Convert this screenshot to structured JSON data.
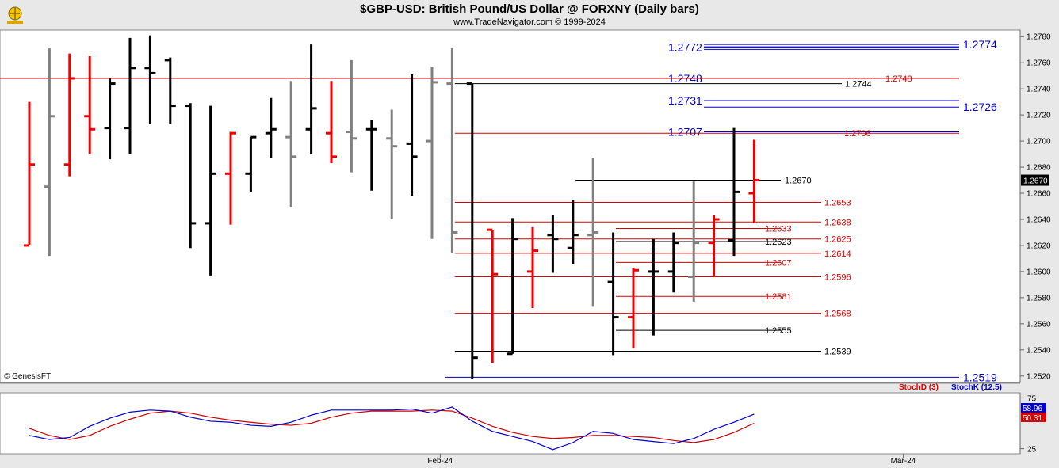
{
  "header": {
    "title": "$GBP-USD:  British Pound/US Dollar @ FORXNY  (Daily bars)",
    "subtitle": "www.TradeNavigator.com © 1999-2024"
  },
  "colors": {
    "up": "#000000",
    "down": "#ee0000",
    "neutral": "#808080",
    "blue_line": "#0000cc",
    "red_line": "#dd0000",
    "black_line": "#000000"
  },
  "copyright": "© GenesisFT",
  "chart_data": [
    {
      "type": "bar",
      "subtype": "ohlc",
      "ylim": [
        1.2515,
        1.2785
      ],
      "yticks": [
        "1.2780",
        "1.2760",
        "1.2740",
        "1.2720",
        "1.2700",
        "1.2680",
        "1.2660",
        "1.2640",
        "1.2620",
        "1.2600",
        "1.2580",
        "1.2560",
        "1.2540",
        "1.2520"
      ],
      "last_price": "1.2670",
      "x_labels": [
        {
          "label": "Feb-24",
          "index": 21
        },
        {
          "label": "Mar-24",
          "index": 44
        }
      ],
      "bars": [
        {
          "o": 1.262,
          "h": 1.273,
          "l": 1.262,
          "c": 1.2682,
          "color": "red"
        },
        {
          "o": 1.2665,
          "h": 1.2771,
          "l": 1.2612,
          "c": 1.2719,
          "color": "gray"
        },
        {
          "o": 1.2682,
          "h": 1.2767,
          "l": 1.2673,
          "c": 1.2748,
          "color": "red"
        },
        {
          "o": 1.2719,
          "h": 1.2765,
          "l": 1.269,
          "c": 1.2709,
          "color": "red"
        },
        {
          "o": 1.271,
          "h": 1.2748,
          "l": 1.2686,
          "c": 1.2744,
          "color": "black"
        },
        {
          "o": 1.271,
          "h": 1.2779,
          "l": 1.269,
          "c": 1.2756,
          "color": "black"
        },
        {
          "o": 1.2756,
          "h": 1.2781,
          "l": 1.2713,
          "c": 1.2752,
          "color": "black"
        },
        {
          "o": 1.2762,
          "h": 1.2764,
          "l": 1.2713,
          "c": 1.2727,
          "color": "black"
        },
        {
          "o": 1.2727,
          "h": 1.2729,
          "l": 1.2618,
          "c": 1.2637,
          "color": "black"
        },
        {
          "o": 1.2637,
          "h": 1.2727,
          "l": 1.2597,
          "c": 1.2675,
          "color": "black"
        },
        {
          "o": 1.2675,
          "h": 1.2707,
          "l": 1.2636,
          "c": 1.2706,
          "color": "red"
        },
        {
          "o": 1.2675,
          "h": 1.2703,
          "l": 1.2661,
          "c": 1.2703,
          "color": "black"
        },
        {
          "o": 1.2706,
          "h": 1.2733,
          "l": 1.2687,
          "c": 1.2709,
          "color": "black"
        },
        {
          "o": 1.2703,
          "h": 1.2746,
          "l": 1.2649,
          "c": 1.2688,
          "color": "gray"
        },
        {
          "o": 1.2709,
          "h": 1.2774,
          "l": 1.269,
          "c": 1.2725,
          "color": "black"
        },
        {
          "o": 1.2706,
          "h": 1.2746,
          "l": 1.2683,
          "c": 1.2688,
          "color": "red"
        },
        {
          "o": 1.2707,
          "h": 1.2762,
          "l": 1.2676,
          "c": 1.2702,
          "color": "gray"
        },
        {
          "o": 1.2709,
          "h": 1.2716,
          "l": 1.2662,
          "c": 1.2709,
          "color": "black"
        },
        {
          "o": 1.2702,
          "h": 1.2724,
          "l": 1.264,
          "c": 1.2696,
          "color": "gray"
        },
        {
          "o": 1.2698,
          "h": 1.2751,
          "l": 1.2658,
          "c": 1.2688,
          "color": "black"
        },
        {
          "o": 1.27,
          "h": 1.2757,
          "l": 1.2625,
          "c": 1.2745,
          "color": "gray"
        },
        {
          "o": 1.2744,
          "h": 1.2771,
          "l": 1.2614,
          "c": 1.263,
          "color": "gray"
        },
        {
          "o": 1.2744,
          "h": 1.2744,
          "l": 1.2518,
          "c": 1.2534,
          "color": "black"
        },
        {
          "o": 1.2632,
          "h": 1.2632,
          "l": 1.253,
          "c": 1.2598,
          "color": "red"
        },
        {
          "o": 1.2537,
          "h": 1.2641,
          "l": 1.2537,
          "c": 1.2625,
          "color": "black"
        },
        {
          "o": 1.26,
          "h": 1.2634,
          "l": 1.2572,
          "c": 1.2616,
          "color": "red"
        },
        {
          "o": 1.2628,
          "h": 1.2643,
          "l": 1.2599,
          "c": 1.2625,
          "color": "black"
        },
        {
          "o": 1.2618,
          "h": 1.2655,
          "l": 1.2606,
          "c": 1.2628,
          "color": "black"
        },
        {
          "o": 1.2628,
          "h": 1.2687,
          "l": 1.2573,
          "c": 1.263,
          "color": "gray"
        },
        {
          "o": 1.2592,
          "h": 1.263,
          "l": 1.2536,
          "c": 1.2565,
          "color": "black"
        },
        {
          "o": 1.2565,
          "h": 1.2603,
          "l": 1.2541,
          "c": 1.2601,
          "color": "red"
        },
        {
          "o": 1.26,
          "h": 1.2625,
          "l": 1.2551,
          "c": 1.26,
          "color": "black"
        },
        {
          "o": 1.26,
          "h": 1.263,
          "l": 1.2584,
          "c": 1.2622,
          "color": "black"
        },
        {
          "o": 1.2596,
          "h": 1.2669,
          "l": 1.2577,
          "c": 1.2622,
          "color": "gray"
        },
        {
          "o": 1.2622,
          "h": 1.2643,
          "l": 1.2596,
          "c": 1.264,
          "color": "red"
        },
        {
          "o": 1.2624,
          "h": 1.271,
          "l": 1.2612,
          "c": 1.2661,
          "color": "black"
        },
        {
          "o": 1.266,
          "h": 1.2701,
          "l": 1.2637,
          "c": 1.267,
          "color": "red"
        }
      ],
      "levels": [
        {
          "value": 1.2774,
          "label": "1.2774",
          "color": "blue",
          "from": 26,
          "label_at": "far",
          "double": true
        },
        {
          "value": 1.2772,
          "label": "1.2772",
          "color": "blue",
          "from": 26,
          "label_at": "left",
          "double": true
        },
        {
          "value": 1.2748,
          "label": "1.2748",
          "color": "blue",
          "from": 26,
          "label_at": "left"
        },
        {
          "value": 1.2748,
          "label": "1.2748",
          "color": "red",
          "from": -1,
          "label_at": "near"
        },
        {
          "value": 1.2744,
          "label": "1.2744",
          "color": "black",
          "from": 22,
          "label_at": "mid"
        },
        {
          "value": 1.2731,
          "label": "1.2731",
          "color": "blue",
          "from": 26,
          "label_at": "left"
        },
        {
          "value": 1.2726,
          "label": "1.2726",
          "color": "blue",
          "from": 26,
          "label_at": "far"
        },
        {
          "value": 1.2707,
          "label": "1.2707",
          "color": "blue",
          "from": 26,
          "label_at": "left"
        },
        {
          "value": 1.2706,
          "label": "1.2706",
          "color": "red",
          "from": 22,
          "label_at": "near"
        },
        {
          "value": 1.267,
          "label": "1.2670",
          "color": "black",
          "from": 28,
          "label_at": "r1"
        },
        {
          "value": 1.2653,
          "label": "1.2653",
          "color": "red",
          "from": 22,
          "label_at": "r2"
        },
        {
          "value": 1.2638,
          "label": "1.2638",
          "color": "red",
          "from": 22,
          "label_at": "r2"
        },
        {
          "value": 1.2633,
          "label": "1.2633",
          "color": "red",
          "from": 30,
          "label_at": "r1"
        },
        {
          "value": 1.2625,
          "label": "1.2625",
          "color": "red",
          "from": 22,
          "label_at": "r2"
        },
        {
          "value": 1.2623,
          "label": "1.2623",
          "color": "black",
          "from": 30,
          "label_at": "r1"
        },
        {
          "value": 1.2614,
          "label": "1.2614",
          "color": "red",
          "from": 22,
          "label_at": "r2"
        },
        {
          "value": 1.2607,
          "label": "1.2607",
          "color": "red",
          "from": 30,
          "label_at": "r1"
        },
        {
          "value": 1.2596,
          "label": "1.2596",
          "color": "red",
          "from": 22,
          "label_at": "r2"
        },
        {
          "value": 1.2581,
          "label": "1.2581",
          "color": "red",
          "from": 30,
          "label_at": "r1"
        },
        {
          "value": 1.2568,
          "label": "1.2568",
          "color": "red",
          "from": 22,
          "label_at": "r2"
        },
        {
          "value": 1.2555,
          "label": "1.2555",
          "color": "black",
          "from": 30,
          "label_at": "r1"
        },
        {
          "value": 1.2539,
          "label": "1.2539",
          "color": "black",
          "from": 22,
          "label_at": "r2"
        },
        {
          "value": 1.2519,
          "label": "1.2519",
          "color": "blue",
          "from": 21,
          "label_at": "far"
        }
      ]
    },
    {
      "type": "line",
      "ylim": [
        20,
        80
      ],
      "yticks": [
        "75",
        "25"
      ],
      "legend": [
        "StochD (3)",
        "StochK (12.5)"
      ],
      "series": [
        {
          "name": "StochD (3)",
          "color": "red",
          "last": "50.31",
          "values": [
            45,
            38,
            34,
            38,
            47,
            54,
            60,
            62,
            60,
            56,
            53,
            51,
            49,
            48,
            50,
            56,
            60,
            62,
            62,
            62,
            63,
            62,
            55,
            47,
            41,
            37,
            35,
            36,
            38,
            38,
            37,
            36,
            33,
            31,
            34,
            41,
            50
          ]
        },
        {
          "name": "StochK (12.5)",
          "color": "blue",
          "last": "58.96",
          "values": [
            38,
            34,
            36,
            47,
            55,
            61,
            63,
            62,
            56,
            52,
            51,
            48,
            47,
            51,
            58,
            63,
            63,
            63,
            63,
            64,
            60,
            66,
            52,
            42,
            37,
            32,
            24,
            31,
            42,
            40,
            34,
            32,
            30,
            35,
            44,
            51,
            59
          ]
        }
      ]
    }
  ]
}
